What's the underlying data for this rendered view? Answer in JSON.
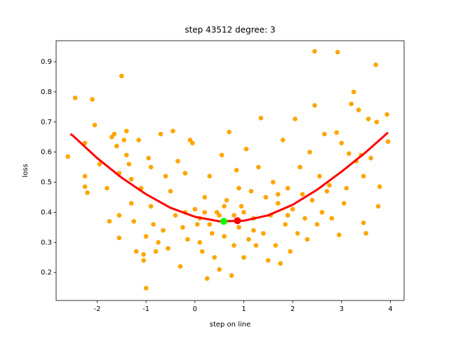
{
  "chart_data": {
    "type": "scatter",
    "title": "step 43512   degree: 3",
    "xlabel": "step on line",
    "ylabel": "loss",
    "xlim": [
      -2.84,
      4.28
    ],
    "ylim": [
      0.107,
      0.97
    ],
    "xticks": [
      -2,
      -1,
      0,
      1,
      2,
      3,
      4
    ],
    "yticks": [
      0.2,
      0.3,
      0.4,
      0.5,
      0.6,
      0.7,
      0.8,
      0.9
    ],
    "grid": false,
    "series": [
      {
        "type": "scatter",
        "color": "#ffa500",
        "x": [
          -2.6,
          -2.45,
          -2.25,
          -2.25,
          -2.25,
          -2.2,
          -2.1,
          -2.05,
          -1.95,
          -1.8,
          -1.75,
          -1.7,
          -1.65,
          -1.6,
          -1.55,
          -1.55,
          -1.55,
          -1.5,
          -1.45,
          -1.4,
          -1.4,
          -1.35,
          -1.3,
          -1.3,
          -1.25,
          -1.2,
          -1.15,
          -1.1,
          -1.05,
          -1.05,
          -1,
          -1,
          -0.95,
          -0.9,
          -0.9,
          -0.85,
          -0.8,
          -0.75,
          -0.7,
          -0.65,
          -0.6,
          -0.55,
          -0.5,
          -0.45,
          -0.4,
          -0.35,
          -0.3,
          -0.25,
          -0.2,
          -0.15,
          -0.1,
          -0.05,
          0,
          0.05,
          0.1,
          0.15,
          0.2,
          0.25,
          0.3,
          0.35,
          0.4,
          0.45,
          0.5,
          0.55,
          0.6,
          0.65,
          0.7,
          0.75,
          0.8,
          0.85,
          0.9,
          0.95,
          1,
          1.05,
          1.1,
          1.15,
          1.2,
          1.25,
          1.3,
          1.35,
          1.4,
          1.45,
          1.5,
          1.55,
          1.6,
          1.65,
          1.7,
          1.75,
          1.8,
          1.85,
          1.9,
          1.95,
          2,
          2.05,
          2.1,
          2.15,
          2.2,
          2.25,
          2.3,
          2.35,
          2.4,
          2.45,
          2.45,
          2.5,
          2.55,
          2.6,
          2.65,
          2.7,
          2.75,
          2.8,
          2.9,
          2.92,
          2.95,
          3,
          3.05,
          3.1,
          3.15,
          3.2,
          3.25,
          3.3,
          3.35,
          3.4,
          3.45,
          3.45,
          3.5,
          3.55,
          3.6,
          3.7,
          3.72,
          3.75,
          3.78,
          3.93,
          3.95,
          0.1,
          0.2,
          0.3,
          0.5,
          0.8,
          1,
          1.2,
          -0.2,
          1.7,
          1.9,
          0.6,
          0.9
        ],
        "values": [
          0.585,
          0.78,
          0.63,
          0.52,
          0.485,
          0.465,
          0.775,
          0.69,
          0.56,
          0.48,
          0.37,
          0.65,
          0.66,
          0.62,
          0.53,
          0.39,
          0.315,
          0.853,
          0.64,
          0.67,
          0.59,
          0.56,
          0.51,
          0.43,
          0.37,
          0.27,
          0.64,
          0.48,
          0.26,
          0.24,
          0.148,
          0.32,
          0.58,
          0.55,
          0.42,
          0.36,
          0.27,
          0.3,
          0.66,
          0.34,
          0.52,
          0.28,
          0.47,
          0.67,
          0.39,
          0.57,
          0.22,
          0.35,
          0.53,
          0.31,
          0.64,
          0.63,
          0.41,
          0.36,
          0.3,
          0.27,
          0.45,
          0.18,
          0.52,
          0.33,
          0.25,
          0.4,
          0.21,
          0.59,
          0.32,
          0.44,
          0.667,
          0.19,
          0.29,
          0.54,
          0.35,
          0.42,
          0.25,
          0.61,
          0.31,
          0.47,
          0.38,
          0.29,
          0.55,
          0.713,
          0.33,
          0.45,
          0.24,
          0.39,
          0.5,
          0.29,
          0.43,
          0.23,
          0.64,
          0.36,
          0.48,
          0.27,
          0.41,
          0.71,
          0.33,
          0.55,
          0.46,
          0.38,
          0.31,
          0.6,
          0.44,
          0.935,
          0.755,
          0.36,
          0.52,
          0.4,
          0.66,
          0.47,
          0.49,
          0.38,
          0.665,
          0.932,
          0.325,
          0.63,
          0.43,
          0.48,
          0.595,
          0.76,
          0.8,
          0.57,
          0.74,
          0.59,
          0.365,
          0.52,
          0.33,
          0.71,
          0.58,
          0.89,
          0.7,
          0.42,
          0.485,
          0.725,
          0.635,
          0.38,
          0.4,
          0.36,
          0.39,
          0.39,
          0.4,
          0.34,
          0.4,
          0.46,
          0.39,
          0.42,
          0.48
        ]
      },
      {
        "type": "line",
        "color": "#ff0000",
        "x": [
          -2.55,
          -2.5,
          -2,
          -1.5,
          -1,
          -0.5,
          0,
          0.5,
          1,
          1.5,
          2,
          2.5,
          3,
          3.5,
          3.95
        ],
        "values": [
          0.66,
          0.655,
          0.58,
          0.515,
          0.46,
          0.415,
          0.385,
          0.37,
          0.372,
          0.39,
          0.425,
          0.475,
          0.535,
          0.6,
          0.665
        ]
      },
      {
        "type": "point",
        "color": "#00ff00",
        "x": [
          0.59
        ],
        "values": [
          0.37
        ]
      },
      {
        "type": "point",
        "color": "#ff0000",
        "x": [
          0.87
        ],
        "values": [
          0.372
        ]
      }
    ]
  }
}
